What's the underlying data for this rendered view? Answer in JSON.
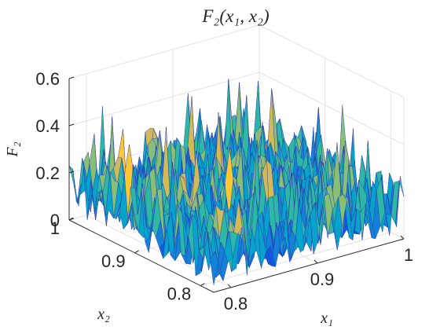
{
  "chart_data": {
    "type": "surface",
    "title": "F₂(x₁, x₂)",
    "xlabel": "x₁",
    "ylabel": "x₂",
    "zlabel": "F₂",
    "xlim": [
      0.78,
      1.0
    ],
    "ylim": [
      0.78,
      1.0
    ],
    "zlim": [
      0,
      0.6
    ],
    "x_ticks": [
      "0.8",
      "0.9",
      "1"
    ],
    "y_ticks": [
      "0.8",
      "0.9",
      "1"
    ],
    "z_ticks": [
      "0",
      "0.2",
      "0.4",
      "0.6"
    ],
    "grid": true,
    "colormap": "parula",
    "grid_size": 40,
    "z_typical_range": [
      0.03,
      0.3
    ],
    "z_max": 0.46,
    "description_values": {
      "surface_base_level": 0.05,
      "peak_values": [
        0.46,
        0.42,
        0.4,
        0.38,
        0.37,
        0.35
      ]
    }
  }
}
